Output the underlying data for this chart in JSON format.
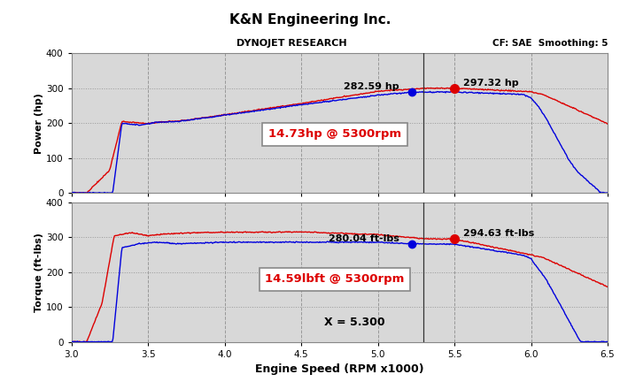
{
  "title": "K&N Engineering Inc.",
  "subtitle_left": "DYNOJET RESEARCH",
  "subtitle_right": "CF: SAE  Smoothing: 5",
  "xlabel": "Engine Speed (RPM x1000)",
  "ylabel_top": "Power (hp)",
  "ylabel_bottom": "Torque (ft-lbs)",
  "xlim": [
    3.0,
    6.5
  ],
  "ylim": [
    0,
    400
  ],
  "yticks": [
    0,
    100,
    200,
    300,
    400
  ],
  "xticks": [
    3.0,
    3.5,
    4.0,
    4.5,
    5.0,
    5.5,
    6.0,
    6.5
  ],
  "plot_bg": "#d8d8d8",
  "outer_bg": "#b0b0b0",
  "power_annotation": "14.73hp @ 5300rpm",
  "torque_annotation": "14.59lbft @ 5300rpm",
  "x_annotation": "X = 5.300",
  "blue_peak_power_label": "282.59 hp",
  "red_peak_power_label": "297.32 hp",
  "blue_peak_torque_label": "280.04 ft-lbs",
  "red_peak_torque_label": "294.63 ft-lbs",
  "blue_peak_power_x": 5.22,
  "blue_peak_power_y": 289,
  "red_peak_power_x": 5.5,
  "red_peak_power_y": 300,
  "blue_peak_torque_x": 5.22,
  "blue_peak_torque_y": 281,
  "red_peak_torque_x": 5.5,
  "red_peak_torque_y": 295,
  "vline_x": 5.3,
  "line_color_blue": "#0000dd",
  "line_color_red": "#dd0000",
  "annot_box_fc": "#ffffff",
  "annot_box_ec": "#888888",
  "annot_text_color": "#dd0000"
}
